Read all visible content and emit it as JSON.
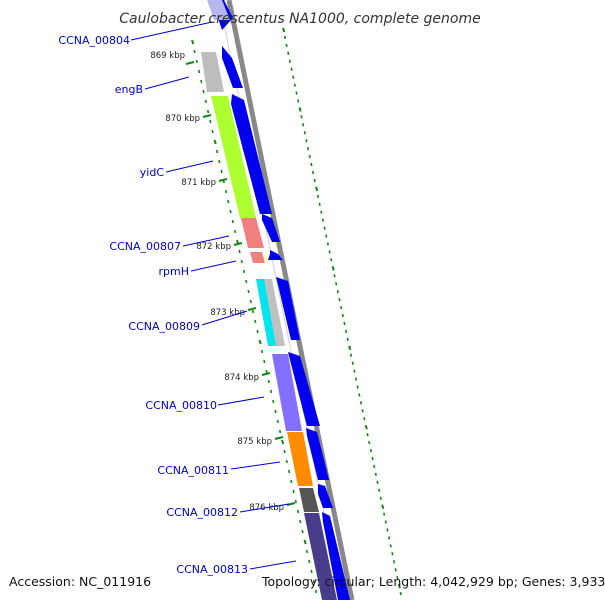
{
  "title": "Caulobacter crescentus NA1000, complete genome",
  "accession": "Accession: NC_011916",
  "topology": "Topology: circular; Length: 4,042,929 bp; Genes: 3,933",
  "genes": [
    {
      "name": "CCNA_00804",
      "color": "#b7b7f0",
      "strand": "+"
    },
    {
      "name": "engB",
      "color": "#bdbdbd",
      "strand": "+"
    },
    {
      "name": "yidC",
      "color": "#adff2f",
      "strand": "+"
    },
    {
      "name": "CCNA_00807",
      "color": "#f08080",
      "strand": "+"
    },
    {
      "name": "rpmH",
      "color": "#f08080",
      "strand": "+"
    },
    {
      "name": "CCNA_00809",
      "color": "#00e5ee",
      "strand": "+"
    },
    {
      "name": "",
      "color": "#c0c0c0",
      "strand": "+"
    },
    {
      "name": "CCNA_00810",
      "color": "#8470ff",
      "strand": "+"
    },
    {
      "name": "CCNA_00811",
      "color": "#ff8c00",
      "strand": "+"
    },
    {
      "name": "CCNA_00812",
      "color": "#555555",
      "strand": "+"
    },
    {
      "name": "CCNA_00813",
      "color": "#483d8b",
      "strand": "+"
    }
  ],
  "kbp_markers": [
    "869 kbp",
    "870 kbp",
    "871 kbp",
    "872 kbp",
    "873 kbp",
    "874 kbp",
    "875 kbp",
    "876 kbp"
  ],
  "colors": {
    "backbone": "#888888",
    "cds_arrow": "#0000ee",
    "label_text": "#0000cc",
    "tick": "#118811"
  }
}
